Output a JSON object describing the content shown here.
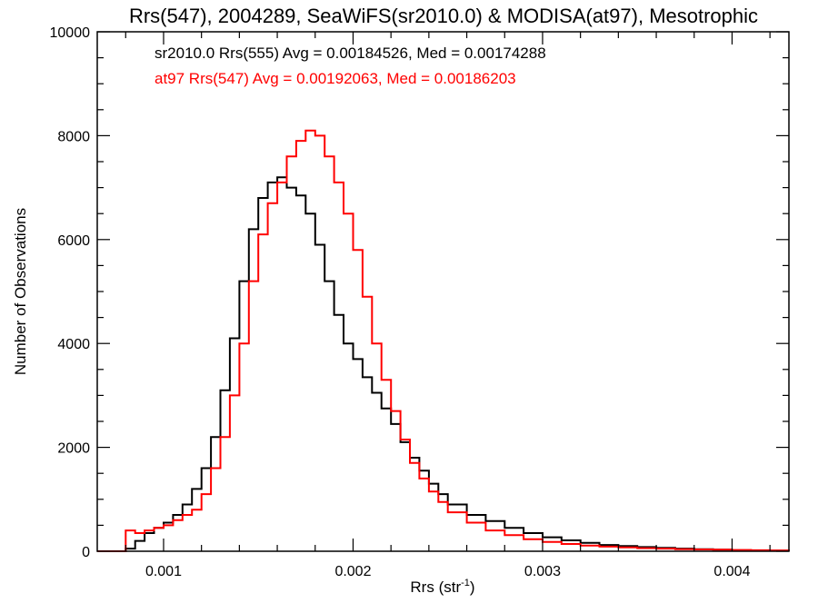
{
  "chart_data": {
    "type": "line",
    "step": true,
    "title": "Rrs(547), 2004289, SeaWiFS(sr2010.0) & MODISA(at97), Mesotrophic",
    "xlabel": "Rrs (str",
    "xlabel_sup": "-1",
    "xlabel_end": ")",
    "ylabel": "Number of Observations",
    "xlim": [
      0.00065,
      0.0043
    ],
    "ylim": [
      0,
      10000
    ],
    "xticks": [
      0.001,
      0.002,
      0.003,
      0.004
    ],
    "xtick_labels": [
      "0.001",
      "0.002",
      "0.003",
      "0.004"
    ],
    "yticks": [
      0,
      2000,
      4000,
      6000,
      8000,
      10000
    ],
    "ytick_labels": [
      "0",
      "2000",
      "4000",
      "6000",
      "8000",
      "10000"
    ],
    "grid": false,
    "annotations": [
      {
        "text": "sr2010.0 Rrs(555) Avg = 0.00184526, Med = 0.00174288",
        "color": "#000000"
      },
      {
        "text": "at97 Rrs(547) Avg = 0.00192063, Med = 0.00186203",
        "color": "#ff0000"
      }
    ],
    "series": [
      {
        "color": "#000000",
        "x": [
          0.00065,
          0.00075,
          0.0008,
          0.00085,
          0.0009,
          0.00095,
          0.001,
          0.00105,
          0.0011,
          0.00115,
          0.0012,
          0.00125,
          0.0013,
          0.00135,
          0.0014,
          0.00145,
          0.0015,
          0.00155,
          0.0016,
          0.00165,
          0.0017,
          0.00175,
          0.0018,
          0.00185,
          0.0019,
          0.00195,
          0.002,
          0.00205,
          0.0021,
          0.00215,
          0.0022,
          0.00225,
          0.0023,
          0.00235,
          0.0024,
          0.00245,
          0.0025,
          0.0026,
          0.0027,
          0.0028,
          0.0029,
          0.003,
          0.0031,
          0.0032,
          0.0033,
          0.0034,
          0.0035,
          0.0036,
          0.0037,
          0.0038,
          0.0039,
          0.004,
          0.0041,
          0.0042,
          0.0043
        ],
        "y": [
          0,
          0,
          50,
          200,
          350,
          450,
          550,
          700,
          900,
          1200,
          1600,
          2200,
          3100,
          4100,
          5200,
          6200,
          6800,
          7100,
          7200,
          7000,
          6850,
          6500,
          5900,
          5200,
          4550,
          4000,
          3700,
          3350,
          3050,
          2750,
          2450,
          2100,
          1800,
          1550,
          1300,
          1100,
          900,
          700,
          580,
          450,
          350,
          270,
          210,
          160,
          120,
          100,
          80,
          65,
          50,
          40,
          30,
          20,
          15,
          10,
          5
        ]
      },
      {
        "color": "#ff0000",
        "x": [
          0.00065,
          0.00075,
          0.0008,
          0.00085,
          0.0009,
          0.00095,
          0.001,
          0.00105,
          0.0011,
          0.00115,
          0.0012,
          0.00125,
          0.0013,
          0.00135,
          0.0014,
          0.00145,
          0.0015,
          0.00155,
          0.0016,
          0.00165,
          0.0017,
          0.00175,
          0.0018,
          0.00185,
          0.0019,
          0.00195,
          0.002,
          0.00205,
          0.0021,
          0.00215,
          0.0022,
          0.00225,
          0.0023,
          0.00235,
          0.0024,
          0.00245,
          0.0025,
          0.0026,
          0.0027,
          0.0028,
          0.0029,
          0.003,
          0.0031,
          0.0032,
          0.0033,
          0.0034,
          0.0035,
          0.0036,
          0.0037,
          0.0038,
          0.0039,
          0.004,
          0.0041,
          0.0042,
          0.0043
        ],
        "y": [
          0,
          0,
          400,
          350,
          400,
          450,
          500,
          600,
          700,
          800,
          1100,
          1600,
          2200,
          3000,
          4000,
          5200,
          6100,
          6700,
          7100,
          7600,
          7900,
          8100,
          8000,
          7600,
          7100,
          6500,
          5800,
          4900,
          4000,
          3300,
          2700,
          2150,
          1700,
          1400,
          1150,
          950,
          750,
          550,
          400,
          310,
          230,
          180,
          140,
          110,
          90,
          75,
          60,
          50,
          40,
          35,
          30,
          25,
          20,
          15,
          10
        ]
      }
    ]
  }
}
